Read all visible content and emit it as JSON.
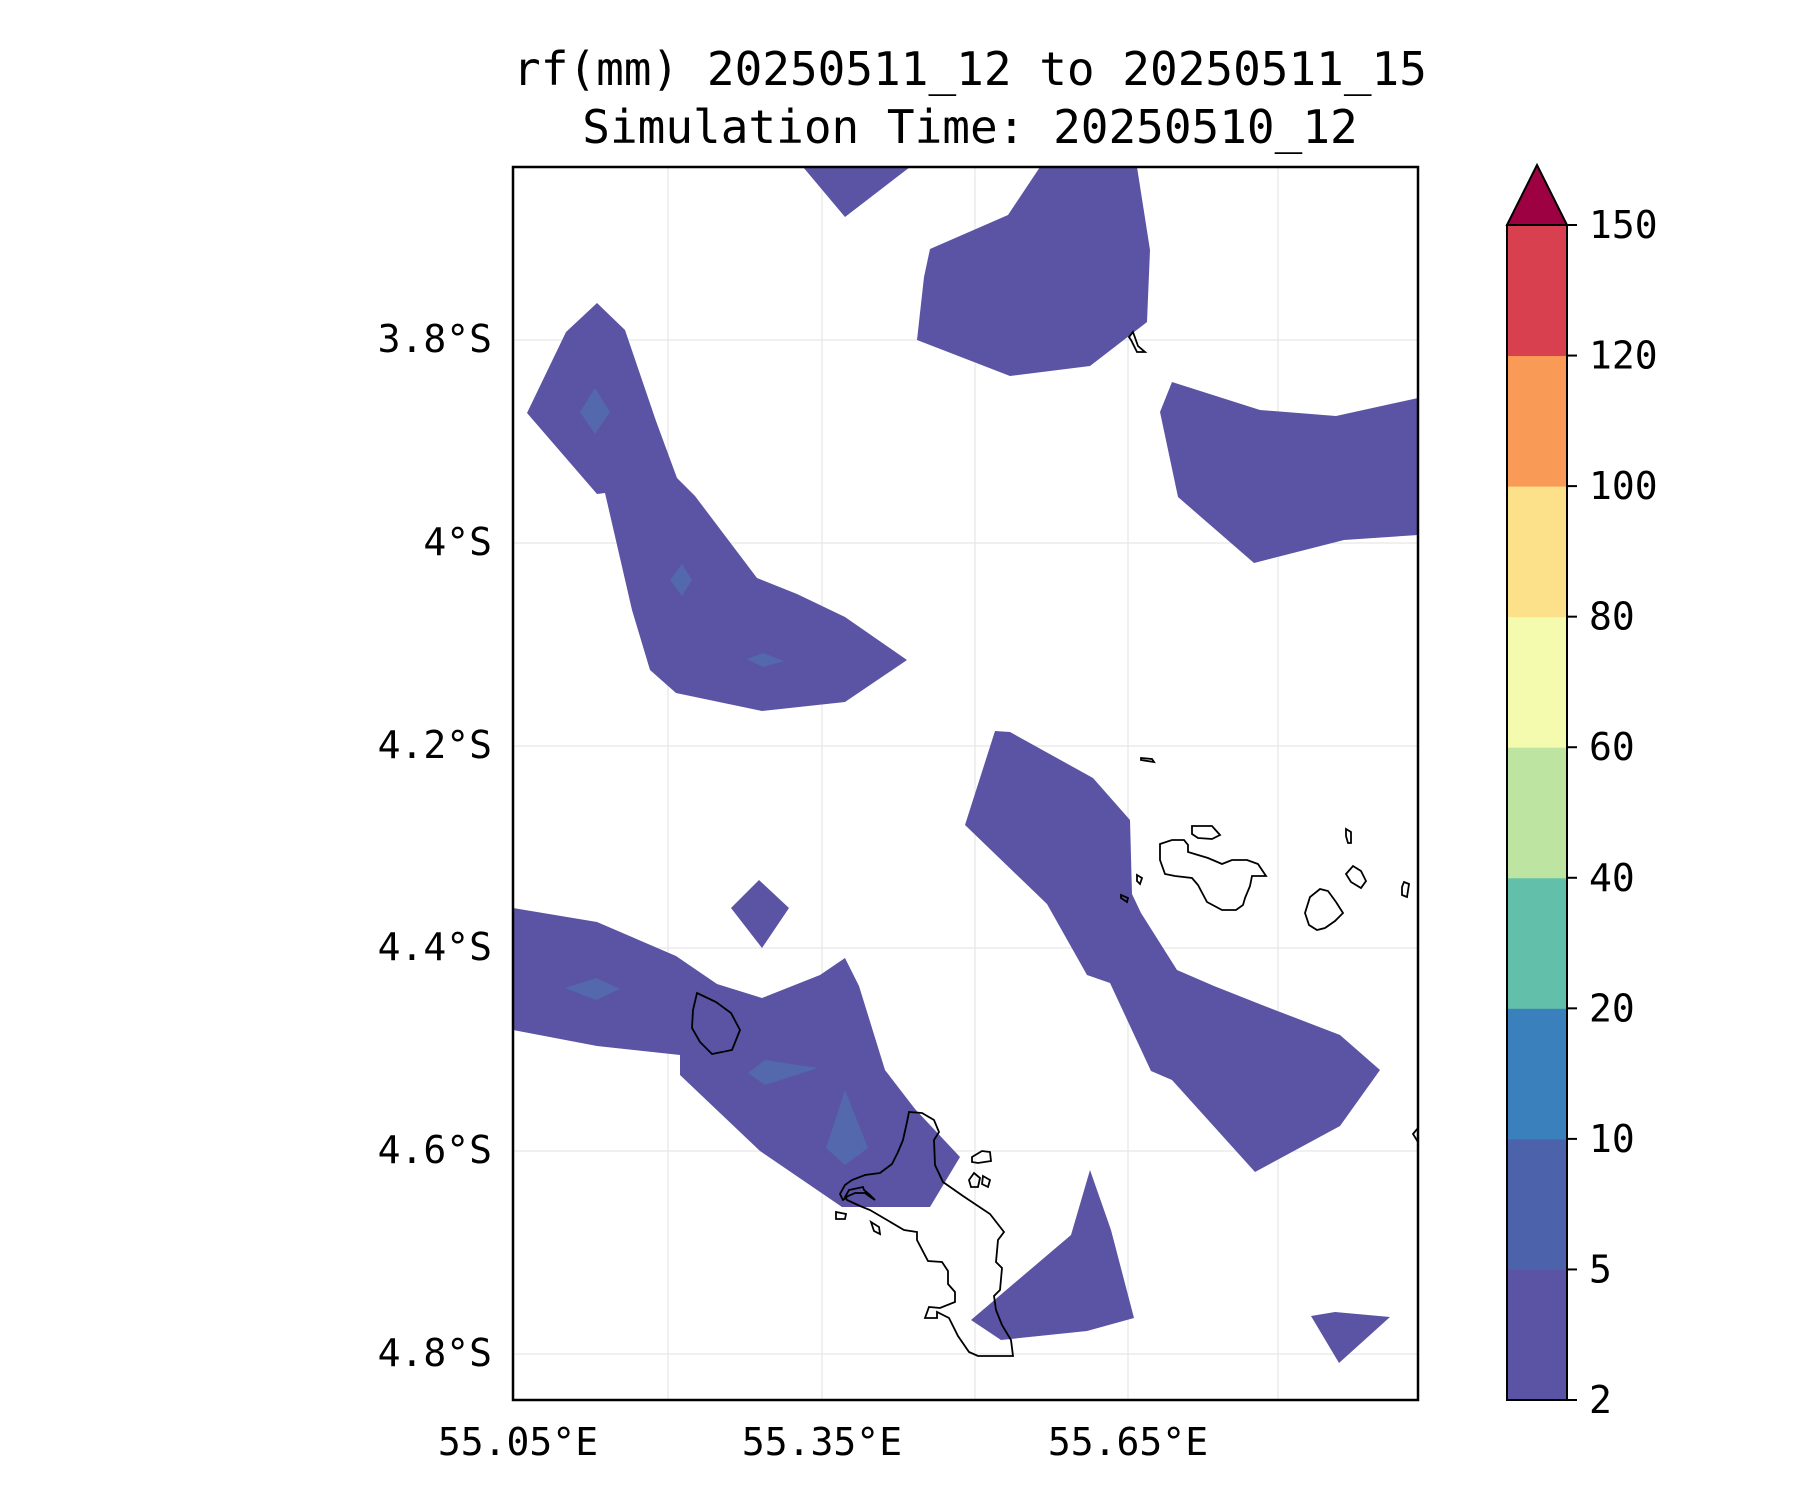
{
  "title": {
    "line1": "rf(mm) 20250511_12 to 20250511_15",
    "line2": "Simulation Time: 20250510_12"
  },
  "map": {
    "lat_ticks": [
      "3.8°S",
      "4°S",
      "4.2°S",
      "4.4°S",
      "4.6°S",
      "4.8°S"
    ],
    "lon_ticks": [
      "55.05°E",
      "55.35°E",
      "55.65°E"
    ],
    "rain_color": "#5b54a4",
    "rain_patch_color": "#5368ad",
    "coast_color": "#000000",
    "grid_color": "#e6e6e6"
  },
  "colorbar": {
    "ticks": [
      "150",
      "120",
      "100",
      "80",
      "60",
      "40",
      "20",
      "10",
      "5",
      "2"
    ],
    "levels": [
      2,
      5,
      10,
      20,
      40,
      60,
      80,
      100,
      120,
      150
    ],
    "colors": [
      "#5b54a4",
      "#4c63ac",
      "#3a80bc",
      "#62bfa9",
      "#bde4a0",
      "#f4fbae",
      "#fde08a",
      "#f99b57",
      "#d83f4f"
    ],
    "extend_color": "#9e0142"
  }
}
